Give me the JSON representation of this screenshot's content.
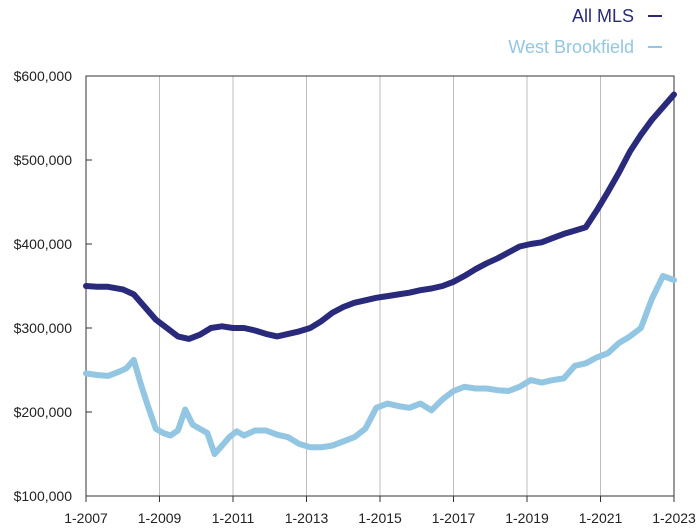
{
  "chart_data": {
    "type": "line",
    "title": "",
    "xlabel": "",
    "ylabel": "",
    "ylim": [
      100000,
      600000
    ],
    "xlim": [
      2007,
      2023
    ],
    "y_ticks": [
      100000,
      200000,
      300000,
      400000,
      500000,
      600000
    ],
    "y_tick_labels": [
      "$100,000",
      "$200,000",
      "$300,000",
      "$400,000",
      "$500,000",
      "$600,000"
    ],
    "x_ticks": [
      2007,
      2009,
      2011,
      2013,
      2015,
      2017,
      2019,
      2021,
      2023
    ],
    "x_tick_labels": [
      "1-2007",
      "1-2009",
      "1-2011",
      "1-2013",
      "1-2015",
      "1-2017",
      "1-2019",
      "1-2021",
      "1-2023"
    ],
    "grid": "vertical",
    "legend_position": "top-right",
    "series": [
      {
        "name": "All MLS",
        "color": "#2a2a7c",
        "x": [
          2007.0,
          2007.3,
          2007.6,
          2008.0,
          2008.3,
          2008.6,
          2008.9,
          2009.2,
          2009.5,
          2009.8,
          2010.1,
          2010.4,
          2010.7,
          2011.0,
          2011.3,
          2011.6,
          2011.9,
          2012.2,
          2012.5,
          2012.8,
          2013.1,
          2013.4,
          2013.7,
          2014.0,
          2014.3,
          2014.6,
          2014.9,
          2015.2,
          2015.5,
          2015.8,
          2016.1,
          2016.4,
          2016.7,
          2017.0,
          2017.3,
          2017.6,
          2017.9,
          2018.2,
          2018.5,
          2018.8,
          2019.1,
          2019.4,
          2019.7,
          2020.0,
          2020.3,
          2020.6,
          2020.9,
          2021.2,
          2021.5,
          2021.8,
          2022.1,
          2022.4,
          2022.7,
          2023.0
        ],
        "y": [
          350000,
          349000,
          349000,
          346000,
          340000,
          325000,
          310000,
          300000,
          290000,
          287000,
          292000,
          300000,
          302000,
          300000,
          300000,
          297000,
          293000,
          290000,
          293000,
          296000,
          300000,
          308000,
          318000,
          325000,
          330000,
          333000,
          336000,
          338000,
          340000,
          342000,
          345000,
          347000,
          350000,
          355000,
          362000,
          370000,
          377000,
          383000,
          390000,
          397000,
          400000,
          402000,
          407000,
          412000,
          416000,
          420000,
          440000,
          462000,
          485000,
          510000,
          530000,
          548000,
          563000,
          578000
        ]
      },
      {
        "name": "West Brookfield",
        "color": "#93c6e2",
        "x": [
          2007.0,
          2007.3,
          2007.6,
          2007.9,
          2008.1,
          2008.3,
          2008.5,
          2008.7,
          2008.9,
          2009.1,
          2009.3,
          2009.5,
          2009.7,
          2009.9,
          2010.1,
          2010.3,
          2010.5,
          2010.7,
          2010.9,
          2011.1,
          2011.3,
          2011.6,
          2011.9,
          2012.2,
          2012.5,
          2012.8,
          2013.1,
          2013.4,
          2013.7,
          2014.0,
          2014.3,
          2014.6,
          2014.9,
          2015.2,
          2015.5,
          2015.8,
          2016.1,
          2016.4,
          2016.7,
          2017.0,
          2017.3,
          2017.6,
          2017.9,
          2018.2,
          2018.5,
          2018.8,
          2019.1,
          2019.4,
          2019.7,
          2020.0,
          2020.3,
          2020.6,
          2020.9,
          2021.2,
          2021.5,
          2021.8,
          2022.1,
          2022.4,
          2022.7,
          2023.0
        ],
        "y": [
          246000,
          244000,
          243000,
          248000,
          252000,
          262000,
          232000,
          205000,
          180000,
          175000,
          172000,
          178000,
          203000,
          185000,
          180000,
          175000,
          150000,
          160000,
          170000,
          177000,
          172000,
          178000,
          178000,
          173000,
          170000,
          162000,
          158000,
          158000,
          160000,
          165000,
          170000,
          180000,
          205000,
          210000,
          207000,
          205000,
          210000,
          202000,
          215000,
          225000,
          230000,
          228000,
          228000,
          226000,
          225000,
          230000,
          238000,
          235000,
          238000,
          240000,
          255000,
          258000,
          265000,
          270000,
          282000,
          290000,
          300000,
          335000,
          362000,
          357000
        ]
      }
    ]
  }
}
